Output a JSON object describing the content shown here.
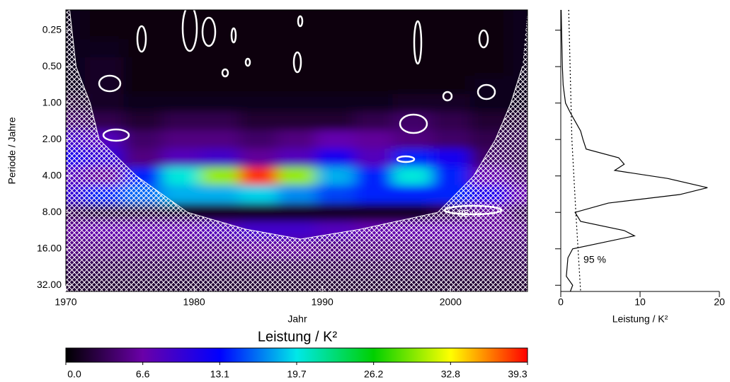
{
  "chart_data": [
    {
      "type": "heatmap",
      "xlabel": "Jahr",
      "ylabel": "Periode / Jahre",
      "xlim": [
        1970,
        2006
      ],
      "ylim": [
        0.17,
        36
      ],
      "yscale": "log",
      "xticks": [
        1970,
        1980,
        1990,
        2000
      ],
      "yticks": [
        {
          "value": 0.25,
          "label": "0.25"
        },
        {
          "value": 0.5,
          "label": "0.50"
        },
        {
          "value": 1,
          "label": "1.00"
        },
        {
          "value": 2,
          "label": "2.00"
        },
        {
          "value": 4,
          "label": "4.00"
        },
        {
          "value": 8,
          "label": "8.00"
        },
        {
          "value": 16,
          "label": "16.00"
        },
        {
          "value": 32,
          "label": "32.00"
        }
      ],
      "years": [
        1970,
        1973,
        1976,
        1979,
        1982,
        1985,
        1988,
        1991,
        1994,
        1997,
        2000,
        2003,
        2006
      ],
      "periods": [
        0.25,
        0.35,
        0.5,
        0.71,
        1,
        1.41,
        2,
        2.83,
        4,
        5.66,
        8,
        11.3,
        16,
        22.6,
        32
      ],
      "values": [
        [
          1,
          0.5,
          0.5,
          0.5,
          0.5,
          0.5,
          0.5,
          0.5,
          0.5,
          0.5,
          0.5,
          0.5,
          1
        ],
        [
          1,
          1,
          0.5,
          0.5,
          0.5,
          0.5,
          0.5,
          0.5,
          0.5,
          0.5,
          0.5,
          0.5,
          1
        ],
        [
          1,
          1.5,
          0.5,
          0.5,
          0.5,
          0.5,
          0.5,
          0.5,
          0.5,
          0.5,
          0.5,
          0.5,
          1
        ],
        [
          1,
          1.5,
          0.5,
          0.5,
          0.5,
          0.5,
          0.5,
          0.5,
          0.5,
          0.5,
          0.5,
          1,
          1
        ],
        [
          2,
          1.5,
          1,
          1,
          1,
          1,
          1,
          1,
          1,
          1.5,
          1.5,
          1,
          1
        ],
        [
          4,
          3,
          2,
          3,
          3,
          2,
          2,
          2,
          3,
          4,
          3,
          2,
          2
        ],
        [
          9,
          8,
          4,
          5,
          5,
          4,
          5,
          7,
          6,
          5,
          4,
          3,
          3
        ],
        [
          12,
          10,
          5,
          8,
          9,
          6,
          8,
          12,
          8,
          14,
          12,
          4,
          3
        ],
        [
          8,
          6,
          14,
          20,
          30,
          38,
          30,
          18,
          14,
          20,
          14,
          7,
          4
        ],
        [
          10,
          14,
          16,
          18,
          18,
          19,
          17,
          15,
          14,
          14,
          14,
          12,
          7
        ],
        [
          3,
          2,
          2,
          1.5,
          1.5,
          1.5,
          1.5,
          1.5,
          1.5,
          1.5,
          3,
          6,
          3
        ],
        [
          6,
          7,
          7,
          7,
          8,
          9,
          9,
          8,
          7,
          7,
          7,
          6,
          5
        ],
        [
          5,
          5,
          5,
          5,
          5,
          6,
          6,
          5,
          5,
          5,
          5,
          4,
          4
        ],
        [
          3,
          3,
          3,
          3,
          3,
          3,
          3,
          3,
          3,
          3,
          3,
          3,
          3
        ],
        [
          2,
          2,
          2,
          2,
          2,
          2,
          2,
          2,
          2,
          2,
          2,
          2,
          2
        ]
      ],
      "colormap": [
        "#000000",
        "#6a00a8",
        "#0000ff",
        "#00e8e8",
        "#00d000",
        "#ffff00",
        "#ff0000"
      ],
      "colorbar": {
        "label": "Leistung / K²",
        "lim": [
          0,
          39.3
        ],
        "ticks": [
          {
            "value": 0,
            "label": "0.0"
          },
          {
            "value": 6.55,
            "label": "6.6"
          },
          {
            "value": 13.1,
            "label": "13.1"
          },
          {
            "value": 19.65,
            "label": "19.7"
          },
          {
            "value": 26.2,
            "label": "26.2"
          },
          {
            "value": 32.75,
            "label": "32.8"
          },
          {
            "value": 39.3,
            "label": "39.3"
          }
        ]
      },
      "coi": {
        "years": [
          1970.3,
          1970.8,
          1971.9,
          1972.6,
          1975.5,
          1979.5,
          1984,
          1988.3,
          1993,
          1999,
          2001.8,
          2003.5,
          2004.7,
          2005.6
        ],
        "periods": [
          0.17,
          0.5,
          1,
          2,
          4,
          8,
          11,
          13.3,
          11,
          8,
          4,
          2,
          1,
          0.5
        ]
      },
      "annotation": "95 %"
    },
    {
      "type": "line",
      "xlabel": "Leistung / K²",
      "xlim": [
        0,
        20
      ],
      "xticks": [
        0,
        10,
        20
      ],
      "series": [
        {
          "color": "#000000",
          "dash": "solid",
          "periods": [
            0.17,
            0.25,
            0.5,
            0.71,
            1,
            1.2,
            1.41,
            1.7,
            2,
            2.4,
            2.83,
            3.2,
            3.6,
            4.2,
            5,
            5.7,
            6.7,
            8,
            9.5,
            11.3,
            12.5,
            16,
            19,
            22.6,
            27,
            32,
            36
          ],
          "values": [
            0.05,
            0.1,
            0.2,
            0.3,
            0.6,
            1.2,
            1.8,
            2.5,
            2.8,
            3.2,
            7.3,
            8.0,
            6.8,
            13.5,
            18.5,
            15,
            6,
            1.8,
            2.5,
            8,
            9.3,
            1.5,
            0.9,
            0.8,
            0.7,
            1.5,
            1.2
          ]
        },
        {
          "color": "#000000",
          "dash": "dotted",
          "periods": [
            0.17,
            2,
            8,
            36
          ],
          "values": [
            1.0,
            1.4,
            1.9,
            2.5
          ]
        }
      ],
      "annotation": "95 %"
    }
  ]
}
